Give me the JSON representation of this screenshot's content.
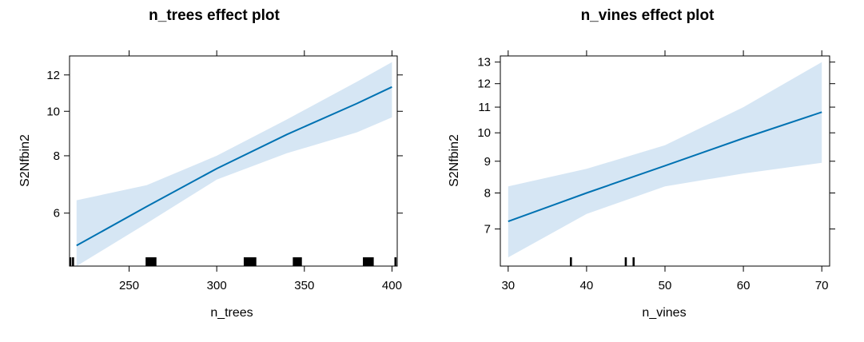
{
  "chart_data": [
    {
      "type": "line",
      "title": "n_trees effect plot",
      "xlabel": "n_trees",
      "ylabel": "S2Nfbin2",
      "y_scale": "log",
      "xlim": [
        216,
        403
      ],
      "ylim": [
        4.6,
        13.2
      ],
      "x_ticks": [
        250,
        300,
        350,
        400
      ],
      "x_tick_labels": [
        "250",
        "300",
        "350",
        "400"
      ],
      "y_ticks": [
        6,
        8,
        10,
        12
      ],
      "y_tick_labels": [
        "6",
        "8",
        "10",
        "12"
      ],
      "grid": false,
      "legend": "none",
      "line_color": "#0072b2",
      "band_color": "#d6e6f4",
      "series": [
        {
          "x": [
            220,
            260,
            300,
            340,
            380,
            400
          ],
          "fit": [
            5.1,
            6.2,
            7.5,
            8.9,
            10.4,
            11.3
          ],
          "lower": [
            4.6,
            5.7,
            7.1,
            8.1,
            9.0,
            9.7
          ],
          "upper": [
            6.4,
            6.9,
            8.0,
            9.6,
            11.6,
            12.8
          ]
        }
      ],
      "rug": [
        216,
        218,
        260,
        261,
        262,
        263,
        264,
        265,
        316,
        317,
        318,
        319,
        320,
        321,
        322,
        344,
        345,
        346,
        347,
        348,
        384,
        385,
        386,
        387,
        388,
        389,
        402
      ]
    },
    {
      "type": "line",
      "title": "n_vines effect plot",
      "xlabel": "n_vines",
      "ylabel": "S2Nfbin2",
      "y_scale": "log",
      "xlim": [
        29,
        71
      ],
      "ylim": [
        6.1,
        13.3
      ],
      "x_ticks": [
        30,
        40,
        50,
        60,
        70
      ],
      "x_tick_labels": [
        "30",
        "40",
        "50",
        "60",
        "70"
      ],
      "y_ticks": [
        7,
        8,
        9,
        10,
        11,
        12,
        13
      ],
      "y_tick_labels": [
        "7",
        "8",
        "9",
        "10",
        "11",
        "12",
        "13"
      ],
      "grid": false,
      "legend": "none",
      "line_color": "#0072b2",
      "band_color": "#d6e6f4",
      "series": [
        {
          "x": [
            30,
            40,
            50,
            60,
            70
          ],
          "fit": [
            7.2,
            8.0,
            8.85,
            9.8,
            10.8
          ],
          "lower": [
            6.3,
            7.4,
            8.2,
            8.6,
            8.95
          ],
          "upper": [
            8.2,
            8.75,
            9.55,
            11.0,
            13.0
          ]
        }
      ],
      "rug": [
        38,
        45,
        46
      ]
    }
  ]
}
